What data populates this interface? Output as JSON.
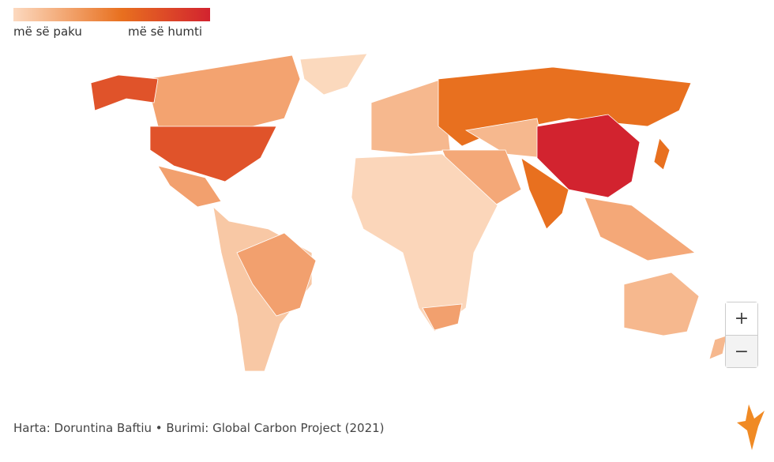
{
  "legend": {
    "low_label": "më së paku",
    "high_label": "më së humti"
  },
  "zoom": {
    "in": "+",
    "out": "−"
  },
  "footer": {
    "credit": "Harta: Doruntina Baftiu • Burimi: Global Carbon Project (2021)"
  }
}
